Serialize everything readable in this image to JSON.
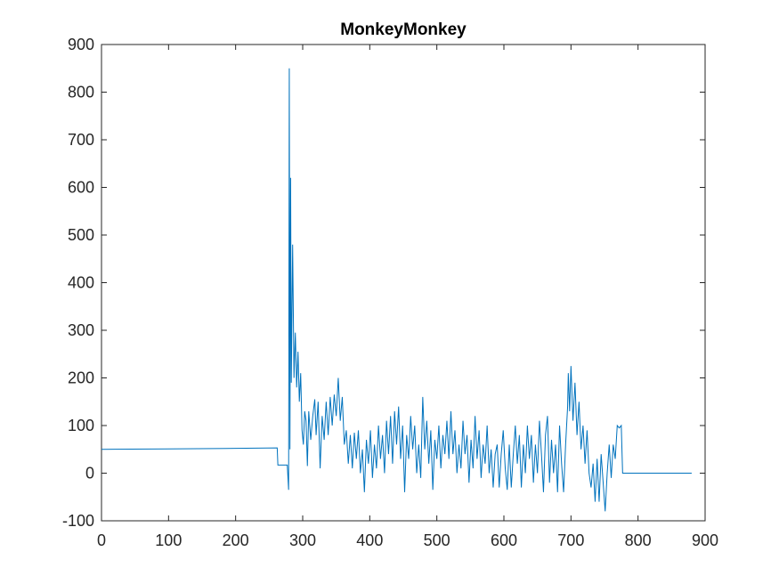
{
  "chart_data": {
    "type": "line",
    "title": "MonkeyMonkey",
    "x": [
      0,
      100,
      200,
      262,
      263,
      277,
      279,
      280,
      281,
      282,
      283,
      285,
      287,
      289,
      291,
      293,
      295,
      297,
      299,
      301,
      303,
      305,
      307,
      309,
      312,
      315,
      318,
      320,
      323,
      326,
      329,
      332,
      335,
      338,
      341,
      344,
      347,
      350,
      353,
      356,
      359,
      362,
      365,
      368,
      371,
      374,
      377,
      380,
      383,
      386,
      389,
      392,
      395,
      398,
      401,
      404,
      407,
      410,
      413,
      416,
      419,
      422,
      425,
      428,
      431,
      434,
      437,
      440,
      443,
      446,
      449,
      452,
      455,
      458,
      461,
      464,
      467,
      470,
      473,
      476,
      479,
      482,
      485,
      488,
      491,
      494,
      497,
      500,
      503,
      506,
      509,
      512,
      515,
      518,
      521,
      524,
      527,
      530,
      533,
      536,
      539,
      542,
      545,
      548,
      551,
      554,
      557,
      560,
      563,
      566,
      569,
      572,
      575,
      578,
      581,
      584,
      587,
      590,
      593,
      596,
      599,
      602,
      605,
      608,
      611,
      614,
      617,
      620,
      623,
      626,
      629,
      632,
      635,
      638,
      641,
      644,
      647,
      650,
      653,
      656,
      659,
      662,
      665,
      668,
      671,
      674,
      677,
      680,
      683,
      686,
      689,
      692,
      695,
      696,
      698,
      700,
      703,
      706,
      709,
      712,
      715,
      718,
      721,
      724,
      727,
      730,
      733,
      736,
      739,
      742,
      745,
      748,
      751,
      754,
      757,
      760,
      763,
      766,
      769,
      772,
      775,
      777,
      880
    ],
    "series": [
      {
        "color": "#0072bd",
        "values": [
          50,
          51,
          52,
          53,
          17,
          17,
          -35,
          850,
          50,
          620,
          190,
          480,
          200,
          295,
          180,
          255,
          150,
          210,
          90,
          60,
          130,
          110,
          15,
          130,
          70,
          120,
          155,
          80,
          150,
          10,
          120,
          70,
          150,
          80,
          160,
          100,
          165,
          120,
          200,
          110,
          160,
          60,
          90,
          20,
          80,
          10,
          85,
          30,
          90,
          0,
          50,
          -40,
          70,
          20,
          90,
          -10,
          60,
          10,
          100,
          30,
          80,
          0,
          110,
          40,
          120,
          20,
          130,
          60,
          140,
          30,
          100,
          -40,
          80,
          30,
          120,
          50,
          100,
          0,
          60,
          -10,
          160,
          50,
          110,
          20,
          90,
          -35,
          70,
          30,
          100,
          10,
          80,
          40,
          110,
          30,
          130,
          40,
          90,
          0,
          60,
          10,
          110,
          40,
          80,
          -20,
          70,
          10,
          120,
          30,
          90,
          -10,
          60,
          20,
          100,
          0,
          50,
          -30,
          40,
          60,
          -30,
          40,
          90,
          10,
          -35,
          60,
          -30,
          40,
          100,
          20,
          80,
          -30,
          60,
          0,
          100,
          30,
          80,
          -20,
          60,
          0,
          110,
          40,
          -40,
          80,
          120,
          -20,
          70,
          0,
          60,
          -40,
          100,
          20,
          -40,
          60,
          140,
          210,
          130,
          225,
          110,
          190,
          80,
          150,
          50,
          100,
          20,
          90,
          0,
          -30,
          20,
          -60,
          30,
          -60,
          40,
          -20,
          -80,
          0,
          60,
          -10,
          60,
          30,
          100,
          95,
          100,
          0,
          0
        ]
      }
    ],
    "xlim": [
      0,
      900
    ],
    "xticks": [
      0,
      100,
      200,
      300,
      400,
      500,
      600,
      700,
      800,
      900
    ],
    "ylim": [
      -100,
      900
    ],
    "yticks": [
      -100,
      0,
      100,
      200,
      300,
      400,
      500,
      600,
      700,
      800,
      900
    ]
  }
}
